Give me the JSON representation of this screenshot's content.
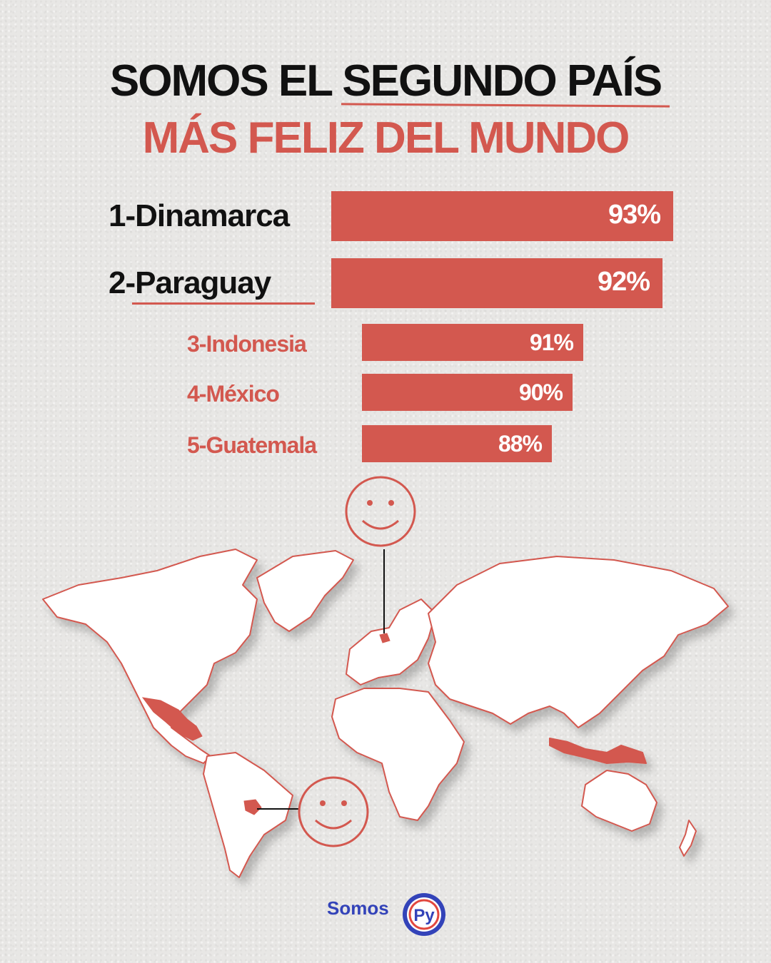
{
  "header": {
    "line1_part1": "SOMOS EL ",
    "line1_part2": "SEGUNDO PAÍS",
    "line2": "MÁS FELIZ DEL MUNDO"
  },
  "chart_data": {
    "type": "bar",
    "categories": [
      "1-Dinamarca",
      "2-Paraguay",
      "3-Indonesia",
      "4-México",
      "5-Guatemala"
    ],
    "values": [
      93,
      92,
      91,
      90,
      88
    ],
    "value_labels": [
      "93%",
      "92%",
      "91%",
      "90%",
      "88%"
    ],
    "title": "SOMOS EL SEGUNDO PAÍS MÁS FELIZ DEL MUNDO",
    "xlabel": "",
    "ylabel": "",
    "grid": false,
    "bar_color": "#d3584f",
    "highlight": "2-Paraguay"
  },
  "map": {
    "highlight_color": "#d3584f",
    "land_color": "#ffffff",
    "smiley_icons": [
      "smiley-icon",
      "smiley-icon"
    ]
  },
  "brand": {
    "text": "Somos",
    "badge_text": "Py",
    "color": "#3343b9"
  }
}
